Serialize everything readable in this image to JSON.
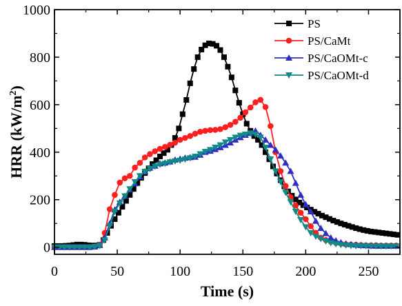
{
  "chart_data": {
    "type": "line",
    "xlabel": "Time (s)",
    "ylabel_main": "HRR (kW/m",
    "ylabel_sup": "2",
    "ylabel_close": ")",
    "xlim": [
      0,
      275
    ],
    "ylim": [
      -30,
      1000
    ],
    "x_ticks": [
      0,
      50,
      100,
      150,
      200,
      250
    ],
    "y_ticks": [
      0,
      200,
      400,
      600,
      800,
      1000
    ],
    "grid": false,
    "legend_position": "top-right",
    "series": [
      {
        "name": "PS",
        "color": "#000000",
        "marker": "square",
        "x": [
          0,
          3,
          6,
          9,
          12,
          15,
          18,
          21,
          24,
          27,
          30,
          33,
          36,
          39,
          42,
          45,
          48,
          51,
          54,
          57,
          60,
          63,
          66,
          69,
          72,
          75,
          78,
          81,
          84,
          87,
          90,
          93,
          96,
          99,
          102,
          105,
          108,
          111,
          114,
          117,
          120,
          123,
          126,
          129,
          132,
          135,
          138,
          141,
          144,
          147,
          150,
          153,
          156,
          159,
          162,
          165,
          168,
          171,
          174,
          177,
          180,
          183,
          186,
          189,
          192,
          195,
          198,
          201,
          204,
          207,
          210,
          213,
          216,
          219,
          222,
          225,
          228,
          231,
          234,
          237,
          240,
          243,
          246,
          249,
          252,
          255,
          258,
          261,
          264,
          267,
          270,
          273
        ],
        "y": [
          5,
          5,
          5,
          6,
          7,
          9,
          11,
          11,
          10,
          8,
          7,
          7,
          10,
          30,
          60,
          90,
          118,
          145,
          170,
          195,
          220,
          245,
          270,
          292,
          312,
          332,
          350,
          366,
          382,
          396,
          410,
          430,
          460,
          500,
          560,
          620,
          690,
          750,
          800,
          832,
          850,
          858,
          856,
          848,
          830,
          800,
          760,
          715,
          660,
          608,
          560,
          520,
          490,
          468,
          452,
          430,
          400,
          370,
          340,
          310,
          282,
          256,
          235,
          217,
          201,
          188,
          177,
          167,
          158,
          149,
          141,
          133,
          126,
          119,
          112,
          106,
          100,
          95,
          90,
          85,
          80,
          76,
          72,
          69,
          66,
          64,
          62,
          60,
          58,
          56,
          54,
          52
        ]
      },
      {
        "name": "PS/CaMt",
        "color": "#ff1f1f",
        "marker": "circle",
        "x": [
          0,
          4,
          8,
          12,
          16,
          20,
          24,
          28,
          32,
          36,
          40,
          44,
          48,
          52,
          56,
          60,
          64,
          68,
          72,
          76,
          80,
          84,
          88,
          92,
          96,
          100,
          104,
          108,
          112,
          116,
          120,
          124,
          128,
          132,
          136,
          140,
          144,
          148,
          152,
          156,
          160,
          164,
          168,
          172,
          176,
          180,
          184,
          188,
          192,
          196,
          200,
          204,
          208,
          212,
          216,
          220,
          224,
          228,
          232,
          236,
          240,
          244,
          248,
          252,
          256,
          260,
          264,
          268,
          272
        ],
        "y": [
          0,
          0,
          0,
          0,
          0,
          0,
          0,
          0,
          3,
          10,
          60,
          160,
          220,
          272,
          290,
          300,
          335,
          355,
          378,
          392,
          404,
          414,
          422,
          431,
          440,
          452,
          460,
          468,
          478,
          486,
          490,
          493,
          494,
          497,
          505,
          515,
          528,
          545,
          568,
          588,
          610,
          620,
          590,
          510,
          400,
          320,
          258,
          210,
          175,
          145,
          118,
          88,
          60,
          40,
          30,
          23,
          18,
          15,
          12,
          11,
          10,
          9,
          8,
          8,
          8,
          7,
          7,
          7,
          7
        ]
      },
      {
        "name": "PS/CaOMt-c",
        "color": "#2e2ec4",
        "marker": "triangle-up",
        "x": [
          0,
          4,
          8,
          12,
          16,
          20,
          24,
          28,
          32,
          36,
          40,
          44,
          48,
          52,
          56,
          60,
          64,
          68,
          72,
          76,
          80,
          84,
          88,
          92,
          96,
          100,
          104,
          108,
          112,
          116,
          120,
          124,
          128,
          132,
          136,
          140,
          144,
          148,
          152,
          156,
          160,
          164,
          168,
          172,
          176,
          180,
          184,
          188,
          192,
          196,
          200,
          204,
          208,
          212,
          216,
          220,
          224,
          228,
          232,
          236,
          240,
          244,
          248,
          252,
          256,
          260,
          264,
          268,
          272
        ],
        "y": [
          0,
          0,
          0,
          0,
          0,
          0,
          0,
          0,
          2,
          8,
          40,
          100,
          158,
          190,
          215,
          242,
          268,
          298,
          318,
          334,
          342,
          352,
          355,
          360,
          368,
          372,
          376,
          378,
          380,
          388,
          400,
          405,
          412,
          420,
          430,
          440,
          452,
          462,
          472,
          480,
          490,
          472,
          452,
          430,
          410,
          385,
          355,
          320,
          270,
          220,
          180,
          150,
          110,
          80,
          58,
          40,
          28,
          20,
          15,
          12,
          10,
          8,
          7,
          6,
          5,
          5,
          5,
          5,
          5
        ]
      },
      {
        "name": "PS/CaOMt-d",
        "color": "#0f8a86",
        "marker": "triangle-down",
        "x": [
          0,
          4,
          8,
          12,
          16,
          20,
          24,
          28,
          32,
          36,
          40,
          44,
          48,
          52,
          56,
          60,
          64,
          68,
          72,
          76,
          80,
          84,
          88,
          92,
          96,
          100,
          104,
          108,
          112,
          116,
          120,
          124,
          128,
          132,
          136,
          140,
          144,
          148,
          152,
          156,
          160,
          164,
          168,
          172,
          176,
          180,
          184,
          188,
          192,
          196,
          200,
          204,
          208,
          212,
          216,
          220,
          224,
          228,
          232,
          236,
          240,
          244,
          248,
          252,
          256,
          260,
          264,
          268,
          272
        ],
        "y": [
          0,
          0,
          0,
          0,
          0,
          0,
          0,
          0,
          2,
          6,
          30,
          90,
          150,
          185,
          215,
          245,
          275,
          300,
          318,
          330,
          340,
          348,
          352,
          358,
          362,
          365,
          370,
          375,
          382,
          392,
          402,
          410,
          420,
          430,
          442,
          452,
          462,
          470,
          475,
          480,
          475,
          462,
          420,
          370,
          320,
          275,
          230,
          190,
          150,
          115,
          85,
          60,
          45,
          35,
          25,
          18,
          13,
          10,
          8,
          6,
          5,
          5,
          5,
          4,
          4,
          4,
          4,
          4,
          4
        ]
      }
    ]
  }
}
